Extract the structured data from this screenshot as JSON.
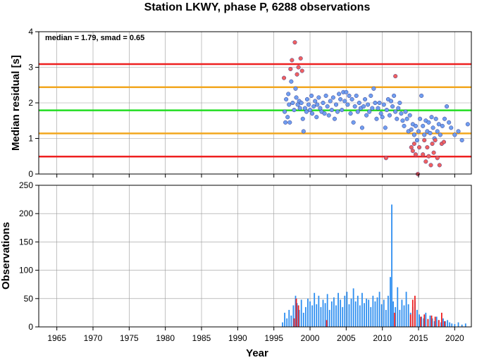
{
  "chart_data": [
    {
      "type": "scatter",
      "title": "Station LKWY, phase P, 6288 observations",
      "xlabel": "",
      "ylabel": "Median residual [s]",
      "annotation": "median = 1.79, smad = 0.65",
      "xlim": [
        1962.5,
        2022.3
      ],
      "ylim": [
        0,
        4
      ],
      "xticks": [
        "1965",
        "1970",
        "1975",
        "1980",
        "1985",
        "1990",
        "1995",
        "2000",
        "2005",
        "2010",
        "2015",
        "2020"
      ],
      "yticks": [
        "0",
        "1",
        "2",
        "3",
        "4"
      ],
      "grid": true,
      "reference_lines": [
        {
          "y": 3.09,
          "color": "#ee2020"
        },
        {
          "y": 2.44,
          "color": "#f2a71f"
        },
        {
          "y": 1.79,
          "color": "#22dd22"
        },
        {
          "y": 1.14,
          "color": "#f2a71f"
        },
        {
          "y": 0.49,
          "color": "#ee2020"
        }
      ],
      "series": [
        {
          "color": "#6f9ef0",
          "points": [
            [
              1996.5,
              1.75
            ],
            [
              1996.6,
              1.45
            ],
            [
              1996.7,
              2.1
            ],
            [
              1996.9,
              1.6
            ],
            [
              1997.0,
              2.25
            ],
            [
              1997.1,
              1.95
            ],
            [
              1997.2,
              1.45
            ],
            [
              1997.4,
              2.6
            ],
            [
              1997.6,
              2.0
            ],
            [
              1997.8,
              1.8
            ],
            [
              1998.0,
              2.4
            ],
            [
              1998.1,
              2.15
            ],
            [
              1998.3,
              1.95
            ],
            [
              1998.5,
              2.05
            ],
            [
              1998.6,
              1.85
            ],
            [
              1998.8,
              2.0
            ],
            [
              1999.0,
              1.55
            ],
            [
              1999.1,
              1.2
            ],
            [
              1999.3,
              1.85
            ],
            [
              1999.5,
              1.75
            ],
            [
              1999.6,
              2.1
            ],
            [
              1999.8,
              1.95
            ],
            [
              2000.0,
              1.8
            ],
            [
              2000.2,
              2.2
            ],
            [
              2000.3,
              1.7
            ],
            [
              2000.5,
              1.9
            ],
            [
              2000.7,
              2.05
            ],
            [
              2000.9,
              1.6
            ],
            [
              2001.0,
              1.95
            ],
            [
              2001.2,
              2.15
            ],
            [
              2001.4,
              1.85
            ],
            [
              2001.6,
              1.75
            ],
            [
              2001.8,
              2.0
            ],
            [
              2002.0,
              1.7
            ],
            [
              2002.2,
              2.2
            ],
            [
              2002.4,
              1.9
            ],
            [
              2002.6,
              1.65
            ],
            [
              2002.8,
              2.05
            ],
            [
              2003.0,
              1.8
            ],
            [
              2003.2,
              2.15
            ],
            [
              2003.4,
              1.55
            ],
            [
              2003.6,
              1.95
            ],
            [
              2003.8,
              1.75
            ],
            [
              2004.0,
              2.25
            ],
            [
              2004.2,
              2.1
            ],
            [
              2004.4,
              1.8
            ],
            [
              2004.6,
              2.3
            ],
            [
              2004.8,
              2.05
            ],
            [
              2005.0,
              2.3
            ],
            [
              2005.2,
              1.95
            ],
            [
              2005.4,
              2.2
            ],
            [
              2005.6,
              1.7
            ],
            [
              2005.8,
              2.1
            ],
            [
              2006.0,
              1.45
            ],
            [
              2006.2,
              1.9
            ],
            [
              2006.4,
              2.2
            ],
            [
              2006.6,
              1.75
            ],
            [
              2006.8,
              2.0
            ],
            [
              2007.0,
              1.85
            ],
            [
              2007.2,
              1.3
            ],
            [
              2007.4,
              1.9
            ],
            [
              2007.6,
              2.1
            ],
            [
              2007.8,
              1.65
            ],
            [
              2008.0,
              1.95
            ],
            [
              2008.2,
              1.75
            ],
            [
              2008.4,
              2.2
            ],
            [
              2008.6,
              1.85
            ],
            [
              2008.8,
              2.4
            ],
            [
              2009.0,
              2.0
            ],
            [
              2009.2,
              1.55
            ],
            [
              2009.4,
              1.85
            ],
            [
              2009.6,
              2.0
            ],
            [
              2009.8,
              1.7
            ],
            [
              2010.0,
              1.6
            ],
            [
              2010.2,
              1.95
            ],
            [
              2010.4,
              1.3
            ],
            [
              2010.6,
              1.8
            ],
            [
              2010.8,
              2.1
            ],
            [
              2011.0,
              1.65
            ],
            [
              2011.2,
              2.05
            ],
            [
              2011.4,
              1.9
            ],
            [
              2011.6,
              2.2
            ],
            [
              2011.8,
              1.75
            ],
            [
              2012.0,
              1.55
            ],
            [
              2012.2,
              1.85
            ],
            [
              2012.4,
              2.0
            ],
            [
              2012.6,
              1.7
            ],
            [
              2012.8,
              1.5
            ],
            [
              2013.0,
              1.35
            ],
            [
              2013.2,
              1.75
            ],
            [
              2013.4,
              1.55
            ],
            [
              2013.6,
              1.2
            ],
            [
              2013.8,
              1.65
            ],
            [
              2014.0,
              1.25
            ],
            [
              2014.2,
              1.4
            ],
            [
              2014.4,
              1.1
            ],
            [
              2014.6,
              1.35
            ],
            [
              2014.8,
              0.95
            ],
            [
              2015.0,
              1.2
            ],
            [
              2015.2,
              1.55
            ],
            [
              2015.4,
              2.2
            ],
            [
              2015.6,
              1.35
            ],
            [
              2015.8,
              1.1
            ],
            [
              2016.0,
              1.5
            ],
            [
              2016.2,
              1.2
            ],
            [
              2016.4,
              1.45
            ],
            [
              2016.6,
              1.15
            ],
            [
              2016.8,
              1.6
            ],
            [
              2017.0,
              1.3
            ],
            [
              2017.2,
              1.0
            ],
            [
              2017.4,
              1.55
            ],
            [
              2017.6,
              1.2
            ],
            [
              2017.8,
              1.4
            ],
            [
              2018.0,
              1.1
            ],
            [
              2018.3,
              1.35
            ],
            [
              2018.6,
              1.55
            ],
            [
              2018.9,
              1.9
            ],
            [
              2019.2,
              1.45
            ],
            [
              2019.5,
              1.3
            ],
            [
              2020.0,
              1.1
            ],
            [
              2020.5,
              1.2
            ],
            [
              2021.0,
              0.95
            ],
            [
              2021.8,
              1.4
            ]
          ]
        },
        {
          "color": "#f06060",
          "points": [
            [
              1996.4,
              2.7
            ],
            [
              1997.3,
              2.95
            ],
            [
              1997.5,
              3.2
            ],
            [
              1997.9,
              3.7
            ],
            [
              1998.2,
              2.8
            ],
            [
              1998.4,
              3.0
            ],
            [
              1998.7,
              3.25
            ],
            [
              1998.9,
              2.9
            ],
            [
              2010.5,
              0.45
            ],
            [
              2011.8,
              2.75
            ],
            [
              2014.0,
              0.75
            ],
            [
              2014.2,
              0.65
            ],
            [
              2014.4,
              0.85
            ],
            [
              2014.6,
              0.55
            ],
            [
              2014.9,
              0.0
            ],
            [
              2015.1,
              0.75
            ],
            [
              2015.6,
              0.55
            ],
            [
              2015.8,
              0.95
            ],
            [
              2016.0,
              0.35
            ],
            [
              2016.2,
              0.75
            ],
            [
              2016.4,
              0.5
            ],
            [
              2016.7,
              0.25
            ],
            [
              2016.9,
              0.85
            ],
            [
              2017.1,
              0.6
            ],
            [
              2017.3,
              0.95
            ],
            [
              2017.6,
              0.45
            ],
            [
              2017.9,
              0.25
            ],
            [
              2018.2,
              0.85
            ],
            [
              2018.5,
              0.9
            ]
          ]
        }
      ]
    },
    {
      "type": "bar",
      "title": "",
      "xlabel": "Year",
      "ylabel": "Observations",
      "xlim": [
        1962.5,
        2022.3
      ],
      "ylim": [
        0,
        250
      ],
      "xticks": [
        "1965",
        "1970",
        "1975",
        "1980",
        "1985",
        "1990",
        "1995",
        "2000",
        "2005",
        "2010",
        "2015",
        "2020"
      ],
      "yticks": [
        "0",
        "50",
        "100",
        "150",
        "200",
        "250"
      ],
      "grid": true,
      "series": [
        {
          "color": "#2d8ef0",
          "x": [
            1996.2,
            1996.5,
            1996.8,
            1997.1,
            1997.4,
            1997.7,
            1998.0,
            1998.2,
            1998.5,
            1998.8,
            1999.1,
            1999.4,
            1999.7,
            2000.0,
            2000.3,
            2000.6,
            2000.9,
            2001.2,
            2001.5,
            2001.8,
            2002.1,
            2002.4,
            2002.7,
            2003.0,
            2003.3,
            2003.6,
            2003.9,
            2004.2,
            2004.5,
            2004.8,
            2005.1,
            2005.4,
            2005.7,
            2006.0,
            2006.3,
            2006.6,
            2006.9,
            2007.2,
            2007.5,
            2007.8,
            2008.1,
            2008.4,
            2008.7,
            2009.0,
            2009.3,
            2009.6,
            2009.9,
            2010.2,
            2010.5,
            2010.8,
            2011.1,
            2011.3,
            2011.5,
            2011.8,
            2012.1,
            2012.4,
            2012.7,
            2013.0,
            2013.3,
            2013.6,
            2013.9,
            2014.2,
            2014.5,
            2014.8,
            2015.1,
            2015.4,
            2015.7,
            2016.0,
            2016.3,
            2016.6,
            2016.9,
            2017.2,
            2017.5,
            2017.8,
            2018.1,
            2018.4,
            2018.7,
            2019.0,
            2019.3,
            2019.6,
            2020.0,
            2020.5,
            2021.0,
            2021.5
          ],
          "values": [
            8,
            25,
            15,
            30,
            20,
            38,
            55,
            42,
            30,
            48,
            25,
            35,
            50,
            45,
            38,
            60,
            40,
            55,
            35,
            48,
            42,
            58,
            30,
            45,
            52,
            38,
            60,
            48,
            35,
            55,
            62,
            40,
            50,
            68,
            45,
            55,
            38,
            60,
            42,
            50,
            48,
            35,
            55,
            45,
            52,
            62,
            40,
            48,
            30,
            55,
            88,
            216,
            45,
            35,
            70,
            30,
            48,
            38,
            62,
            40,
            25,
            35,
            45,
            30,
            22,
            18,
            15,
            25,
            12,
            20,
            15,
            10,
            18,
            12,
            8,
            15,
            10,
            12,
            8,
            6,
            5,
            8,
            4,
            6
          ]
        },
        {
          "color": "#ee2020",
          "x": [
            1997.8,
            1998.1,
            1998.4,
            2002.3,
            2011.7,
            2013.9,
            2014.2,
            2014.5,
            2015.3,
            2015.8,
            2016.3,
            2016.8,
            2017.3,
            2017.8,
            2018.2,
            2018.6
          ],
          "values": [
            15,
            50,
            38,
            12,
            25,
            22,
            48,
            55,
            18,
            22,
            14,
            20,
            18,
            12,
            25,
            10
          ]
        }
      ]
    }
  ]
}
